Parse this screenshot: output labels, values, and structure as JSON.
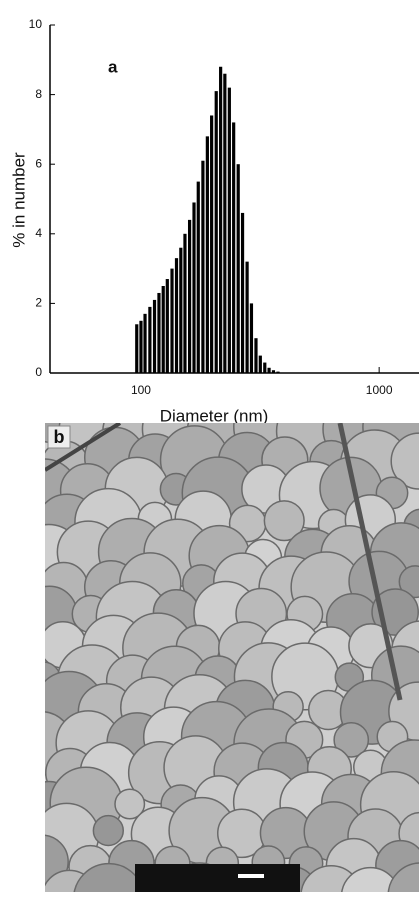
{
  "chart_data": {
    "type": "bar",
    "annotation": "a",
    "x_label": "Diameter (nm)",
    "y_label": "% in number",
    "x_scale": "log",
    "x": [
      96,
      100,
      104,
      109,
      114,
      119,
      124,
      129,
      135,
      141,
      147,
      153,
      160,
      167,
      174,
      182,
      190,
      198,
      207,
      216,
      225,
      235,
      245,
      256,
      267,
      279,
      291,
      304,
      317,
      331,
      345,
      360,
      376
    ],
    "values": [
      1.4,
      1.5,
      1.7,
      1.9,
      2.1,
      2.3,
      2.5,
      2.7,
      3.0,
      3.3,
      3.6,
      4.0,
      4.4,
      4.9,
      5.5,
      6.1,
      6.8,
      7.4,
      8.1,
      8.8,
      8.6,
      8.2,
      7.2,
      6.0,
      4.6,
      3.2,
      2.0,
      1.0,
      0.5,
      0.3,
      0.15,
      0.08,
      0.04
    ],
    "color": "#000000",
    "xlim": [
      41.5,
      1470
    ],
    "ylim": [
      0,
      10
    ],
    "xticks": [
      100,
      1000
    ],
    "yticks": [
      0,
      2,
      4,
      6,
      8,
      10
    ]
  },
  "micrograph": {
    "label": "b"
  }
}
